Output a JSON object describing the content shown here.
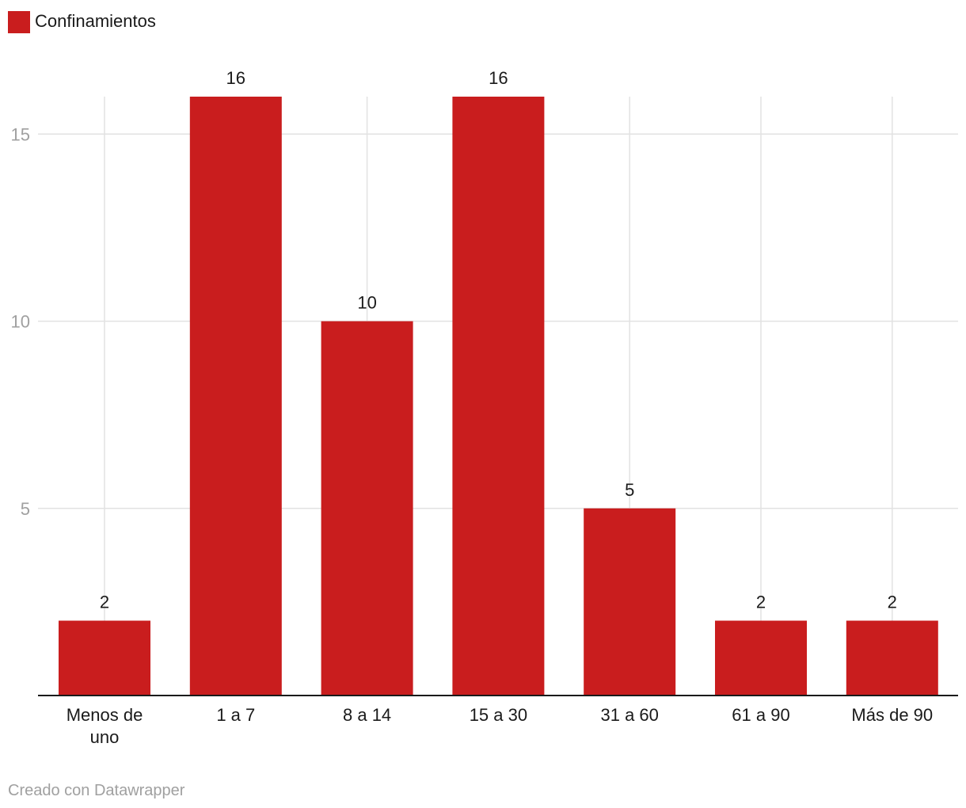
{
  "chart_data": {
    "type": "bar",
    "categories": [
      [
        "Menos de",
        "uno"
      ],
      [
        "1 a 7"
      ],
      [
        "8 a 14"
      ],
      [
        "15 a 30"
      ],
      [
        "31 a 60"
      ],
      [
        "61 a 90"
      ],
      [
        "Más de 90"
      ]
    ],
    "series": [
      {
        "name": "Confinamientos",
        "values": [
          2,
          16,
          10,
          16,
          5,
          2,
          2
        ],
        "color": "#c91d1e"
      }
    ],
    "yticks": [
      5,
      10,
      15
    ],
    "ylim": [
      0,
      16
    ],
    "grid": true,
    "legend_position": "top-left",
    "data_labels": true
  },
  "credit": "Creado con Datawrapper"
}
